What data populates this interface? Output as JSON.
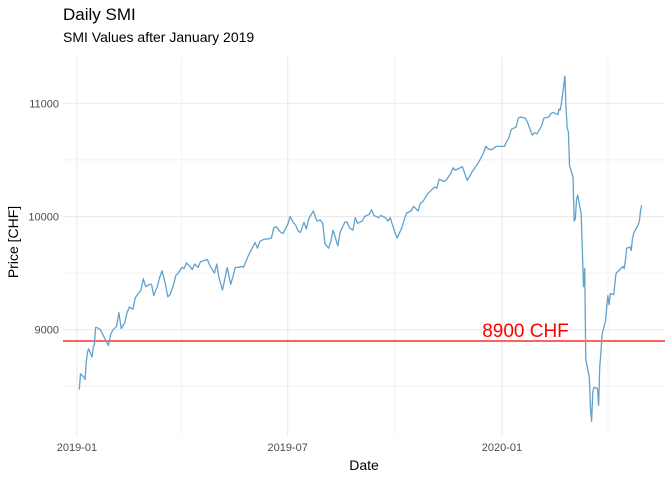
{
  "chart_data": {
    "type": "line",
    "title": "Daily SMI",
    "subtitle": "SMI Values after January 2019",
    "xlabel": "Date",
    "ylabel": "Price [CHF]",
    "x_tick_labels": [
      "2019-01",
      "2019-07",
      "2020-01"
    ],
    "y_tick_values": [
      9000,
      10000,
      11000
    ],
    "xlim": [
      "2018-12-20",
      "2020-05-20"
    ],
    "ylim": [
      8060,
      11410
    ],
    "grid": true,
    "line_color": "#5fa2cd",
    "hline": {
      "value": 8900,
      "color": "#ff0000",
      "label": "8900 CHF",
      "label_date": "2019-12-15"
    },
    "series": [
      {
        "x": [
          "2019-01-03",
          "2019-01-04",
          "2019-01-07",
          "2019-01-08",
          "2019-01-09",
          "2019-01-10",
          "2019-01-11",
          "2019-01-14",
          "2019-01-15",
          "2019-01-16",
          "2019-01-17",
          "2019-01-18",
          "2019-01-21",
          "2019-01-23",
          "2019-01-25",
          "2019-01-28",
          "2019-01-30",
          "2019-02-01",
          "2019-02-04",
          "2019-02-06",
          "2019-02-08",
          "2019-02-11",
          "2019-02-13",
          "2019-02-15",
          "2019-02-18",
          "2019-02-20",
          "2019-02-22",
          "2019-02-25",
          "2019-02-27",
          "2019-03-01",
          "2019-03-04",
          "2019-03-06",
          "2019-03-08",
          "2019-03-11",
          "2019-03-13",
          "2019-03-15",
          "2019-03-18",
          "2019-03-20",
          "2019-03-22",
          "2019-03-25",
          "2019-03-27",
          "2019-03-29",
          "2019-04-01",
          "2019-04-03",
          "2019-04-05",
          "2019-04-08",
          "2019-04-10",
          "2019-04-12",
          "2019-04-15",
          "2019-04-17",
          "2019-04-23",
          "2019-04-25",
          "2019-04-29",
          "2019-05-01",
          "2019-05-03",
          "2019-05-06",
          "2019-05-08",
          "2019-05-10",
          "2019-05-13",
          "2019-05-15",
          "2019-05-17",
          "2019-05-20",
          "2019-05-22",
          "2019-05-24",
          "2019-05-28",
          "2019-05-31",
          "2019-06-03",
          "2019-06-05",
          "2019-06-07",
          "2019-06-11",
          "2019-06-13",
          "2019-06-17",
          "2019-06-19",
          "2019-06-21",
          "2019-06-25",
          "2019-06-27",
          "2019-07-01",
          "2019-07-03",
          "2019-07-05",
          "2019-07-08",
          "2019-07-10",
          "2019-07-12",
          "2019-07-15",
          "2019-07-17",
          "2019-07-19",
          "2019-07-23",
          "2019-07-26",
          "2019-07-29",
          "2019-07-31",
          "2019-08-02",
          "2019-08-05",
          "2019-08-07",
          "2019-08-09",
          "2019-08-13",
          "2019-08-15",
          "2019-08-19",
          "2019-08-21",
          "2019-08-23",
          "2019-08-26",
          "2019-08-28",
          "2019-08-30",
          "2019-09-03",
          "2019-09-05",
          "2019-09-09",
          "2019-09-11",
          "2019-09-13",
          "2019-09-17",
          "2019-09-19",
          "2019-09-23",
          "2019-09-25",
          "2019-09-27",
          "2019-10-01",
          "2019-10-03",
          "2019-10-07",
          "2019-10-09",
          "2019-10-11",
          "2019-10-15",
          "2019-10-17",
          "2019-10-21",
          "2019-10-23",
          "2019-10-25",
          "2019-10-29",
          "2019-10-31",
          "2019-11-04",
          "2019-11-06",
          "2019-11-08",
          "2019-11-12",
          "2019-11-14",
          "2019-11-18",
          "2019-11-20",
          "2019-11-22",
          "2019-11-26",
          "2019-11-28",
          "2019-12-02",
          "2019-12-04",
          "2019-12-06",
          "2019-12-10",
          "2019-12-12",
          "2019-12-16",
          "2019-12-18",
          "2019-12-20",
          "2019-12-23",
          "2019-12-27",
          "2019-12-30",
          "2020-01-03",
          "2020-01-07",
          "2020-01-09",
          "2020-01-13",
          "2020-01-15",
          "2020-01-17",
          "2020-01-21",
          "2020-01-23",
          "2020-01-27",
          "2020-01-29",
          "2020-01-31",
          "2020-02-04",
          "2020-02-06",
          "2020-02-10",
          "2020-02-12",
          "2020-02-14",
          "2020-02-18",
          "2020-02-19",
          "2020-02-20",
          "2020-02-21",
          "2020-02-24",
          "2020-02-25",
          "2020-02-26",
          "2020-02-27",
          "2020-02-28",
          "2020-03-02",
          "2020-03-03",
          "2020-03-04",
          "2020-03-05",
          "2020-03-06",
          "2020-03-09",
          "2020-03-10",
          "2020-03-11",
          "2020-03-12",
          "2020-03-13",
          "2020-03-16",
          "2020-03-17",
          "2020-03-18",
          "2020-03-19",
          "2020-03-20",
          "2020-03-23",
          "2020-03-24",
          "2020-03-25",
          "2020-03-26",
          "2020-03-27",
          "2020-03-30",
          "2020-03-31",
          "2020-04-01",
          "2020-04-02",
          "2020-04-03",
          "2020-04-06",
          "2020-04-07",
          "2020-04-08",
          "2020-04-09",
          "2020-04-14",
          "2020-04-15",
          "2020-04-16",
          "2020-04-17",
          "2020-04-20",
          "2020-04-21",
          "2020-04-22",
          "2020-04-23",
          "2020-04-24",
          "2020-04-27",
          "2020-04-28",
          "2020-04-29",
          "2020-04-30"
        ],
        "y": [
          8470,
          8610,
          8580,
          8560,
          8720,
          8800,
          8830,
          8760,
          8850,
          8870,
          9020,
          9020,
          9000,
          8960,
          8920,
          8860,
          8960,
          9000,
          9030,
          9150,
          9010,
          9060,
          9150,
          9200,
          9180,
          9280,
          9310,
          9350,
          9450,
          9380,
          9400,
          9400,
          9300,
          9380,
          9460,
          9520,
          9400,
          9290,
          9310,
          9400,
          9480,
          9500,
          9550,
          9540,
          9590,
          9560,
          9530,
          9580,
          9550,
          9600,
          9620,
          9570,
          9500,
          9580,
          9460,
          9350,
          9450,
          9550,
          9400,
          9470,
          9550,
          9550,
          9560,
          9550,
          9650,
          9710,
          9770,
          9720,
          9780,
          9800,
          9800,
          9810,
          9900,
          9910,
          9860,
          9850,
          9930,
          10000,
          9960,
          9920,
          9870,
          9860,
          9950,
          9890,
          9980,
          10050,
          9960,
          9970,
          9940,
          9760,
          9720,
          9780,
          9880,
          9740,
          9860,
          9950,
          9950,
          9900,
          9880,
          9990,
          9940,
          9960,
          10000,
          10020,
          10060,
          10010,
          9990,
          10010,
          9990,
          9960,
          9990,
          9860,
          9810,
          9900,
          9970,
          10030,
          10050,
          10090,
          10050,
          10120,
          10130,
          10200,
          10220,
          10260,
          10250,
          10330,
          10310,
          10320,
          10380,
          10430,
          10410,
          10430,
          10440,
          10320,
          10350,
          10390,
          10450,
          10480,
          10560,
          10620,
          10600,
          10590,
          10620,
          10620,
          10620,
          10700,
          10770,
          10790,
          10870,
          10880,
          10870,
          10830,
          10720,
          10740,
          10730,
          10800,
          10870,
          10880,
          10910,
          10920,
          10900,
          10950,
          10940,
          11000,
          11240,
          10960,
          10780,
          10750,
          10450,
          10350,
          9960,
          9980,
          10150,
          10190,
          10020,
          9720,
          9380,
          9540,
          8740,
          8580,
          8300,
          8190,
          8450,
          8490,
          8480,
          8330,
          8680,
          8810,
          8960,
          9080,
          9210,
          9300,
          9220,
          9320,
          9310,
          9410,
          9500,
          9510,
          9560,
          9540,
          9610,
          9720,
          9730,
          9700,
          9800,
          9850,
          9870,
          9930,
          9960,
          10050,
          10100
        ]
      }
    ]
  }
}
